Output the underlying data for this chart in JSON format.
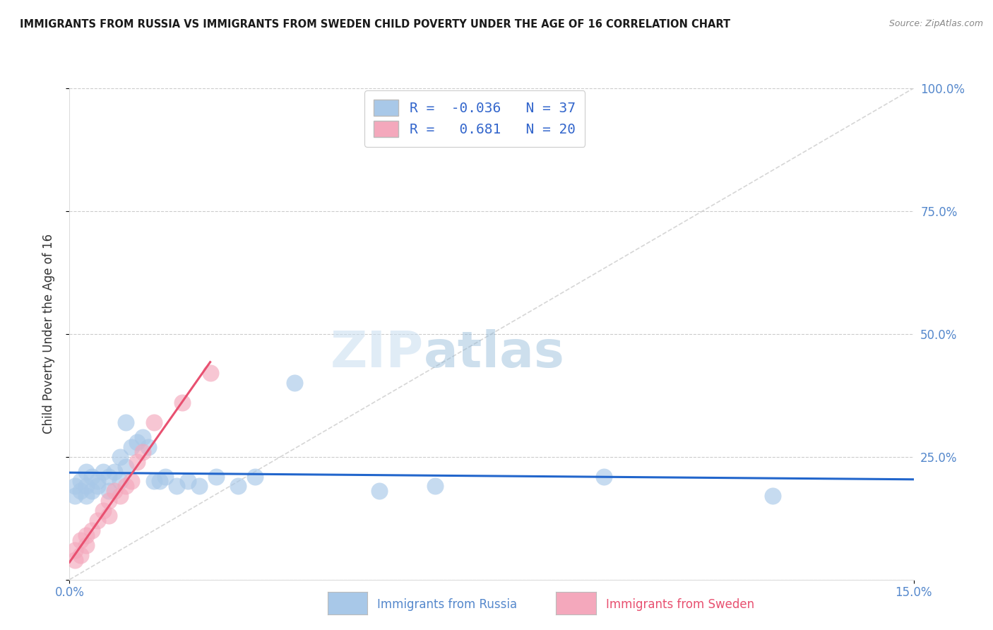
{
  "title": "IMMIGRANTS FROM RUSSIA VS IMMIGRANTS FROM SWEDEN CHILD POVERTY UNDER THE AGE OF 16 CORRELATION CHART",
  "source": "Source: ZipAtlas.com",
  "ylabel": "Child Poverty Under the Age of 16",
  "xlabel_russia": "Immigrants from Russia",
  "xlabel_sweden": "Immigrants from Sweden",
  "xlim": [
    0.0,
    0.15
  ],
  "ylim": [
    0.0,
    1.0
  ],
  "ytick_vals": [
    0.0,
    0.25,
    0.5,
    0.75,
    1.0
  ],
  "ytick_labels": [
    "",
    "25.0%",
    "50.0%",
    "75.0%",
    "100.0%"
  ],
  "xtick_vals": [
    0.0,
    0.15
  ],
  "xtick_labels": [
    "0.0%",
    "15.0%"
  ],
  "russia_R": -0.036,
  "russia_N": 37,
  "sweden_R": 0.681,
  "sweden_N": 20,
  "russia_color": "#a8c8e8",
  "sweden_color": "#f4a8bc",
  "russia_line_color": "#2266cc",
  "sweden_line_color": "#e85070",
  "diagonal_color": "#cccccc",
  "background_color": "#ffffff",
  "grid_color": "#cccccc",
  "tick_color": "#5588cc",
  "russia_x": [
    0.001,
    0.001,
    0.002,
    0.002,
    0.003,
    0.003,
    0.003,
    0.004,
    0.004,
    0.005,
    0.005,
    0.006,
    0.007,
    0.007,
    0.008,
    0.009,
    0.009,
    0.01,
    0.01,
    0.011,
    0.012,
    0.013,
    0.014,
    0.015,
    0.016,
    0.017,
    0.019,
    0.021,
    0.023,
    0.026,
    0.03,
    0.033,
    0.04,
    0.055,
    0.065,
    0.095,
    0.125
  ],
  "russia_y": [
    0.17,
    0.19,
    0.18,
    0.2,
    0.17,
    0.19,
    0.22,
    0.18,
    0.21,
    0.19,
    0.2,
    0.22,
    0.18,
    0.21,
    0.22,
    0.2,
    0.25,
    0.23,
    0.32,
    0.27,
    0.28,
    0.29,
    0.27,
    0.2,
    0.2,
    0.21,
    0.19,
    0.2,
    0.19,
    0.21,
    0.19,
    0.21,
    0.4,
    0.18,
    0.19,
    0.21,
    0.17
  ],
  "sweden_x": [
    0.001,
    0.001,
    0.002,
    0.002,
    0.003,
    0.003,
    0.004,
    0.005,
    0.006,
    0.007,
    0.007,
    0.008,
    0.009,
    0.01,
    0.011,
    0.012,
    0.013,
    0.015,
    0.02,
    0.025
  ],
  "sweden_y": [
    0.04,
    0.06,
    0.05,
    0.08,
    0.07,
    0.09,
    0.1,
    0.12,
    0.14,
    0.13,
    0.16,
    0.18,
    0.17,
    0.19,
    0.2,
    0.24,
    0.26,
    0.32,
    0.36,
    0.42
  ]
}
